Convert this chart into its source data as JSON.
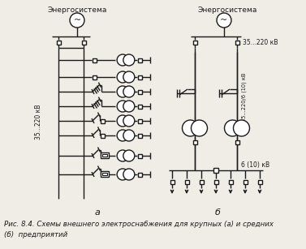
{
  "bg_color": "#f0ede6",
  "lc": "#1a1a1a",
  "lw": 1.0,
  "title_a": "Энергосистема",
  "title_b": "Энергосистема",
  "vol_a": "35...220 кВ",
  "vol_b": "35...220 кВ",
  "vol_b2": "35...220/6 (10) кВ",
  "vol_b3": "6 (10) кВ",
  "lbl_a": "а",
  "lbl_b": "б",
  "cap1": "Рис. 8.4. Схемы внешнего электроснабжения для крупных (а) и средних",
  "cap2": "(б)  предприятий"
}
